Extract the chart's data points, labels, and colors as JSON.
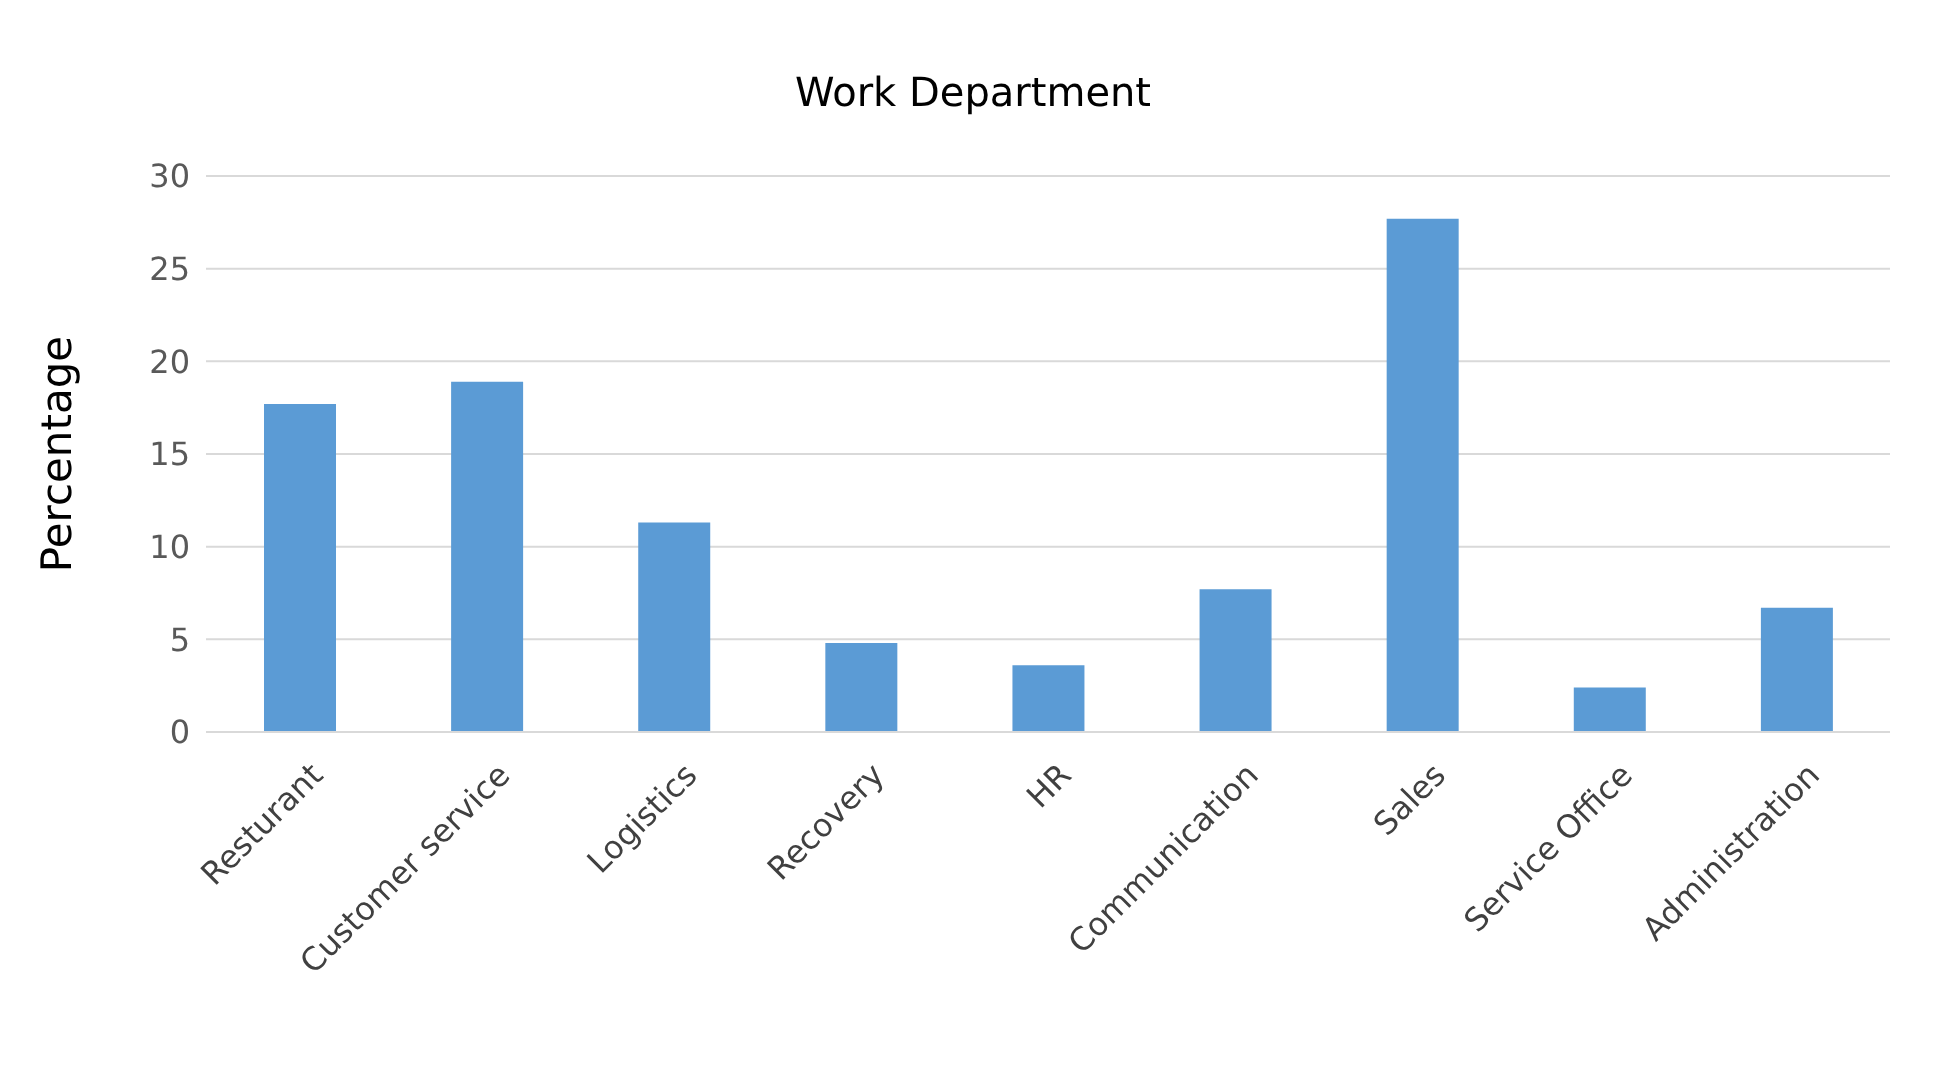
{
  "chart_data": {
    "type": "bar",
    "title": "Work Department",
    "ylabel": "Percentage",
    "categories": [
      "Resturant",
      "Customer service",
      "Logistics",
      "Recovery",
      "HR",
      "Communication",
      "Sales",
      "Service Office",
      "Administration"
    ],
    "values": [
      17.7,
      18.9,
      11.3,
      4.8,
      3.6,
      7.7,
      27.7,
      2.4,
      6.7
    ],
    "color": "#5b9bd5",
    "ylim": [
      0,
      30
    ],
    "yticks": [
      0,
      5,
      10,
      15,
      20,
      25,
      30
    ],
    "grid": "y"
  }
}
